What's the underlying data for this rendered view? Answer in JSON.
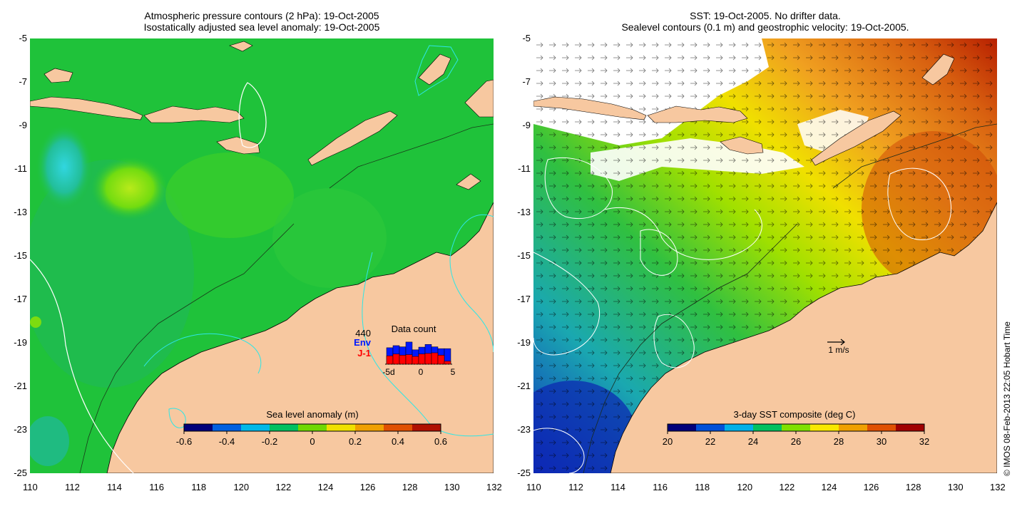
{
  "left_panel": {
    "title_line1": "Atmospheric pressure contours (2 hPa): 19-Oct-2005",
    "title_line2": "Isostatically adjusted sea level anomaly: 19-Oct-2005",
    "colorbar": {
      "label": "Sea level anomaly (m)",
      "ticks": [
        "-0.6",
        "-0.4",
        "-0.2",
        "0",
        "0.2",
        "0.4",
        "0.6"
      ],
      "values": [
        -0.6,
        -0.4,
        -0.2,
        0,
        0.2,
        0.4,
        0.6
      ],
      "colors": [
        "#00007a",
        "#0060e0",
        "#00b8e8",
        "#00c060",
        "#70d800",
        "#f0e000",
        "#f0a000",
        "#e05000",
        "#b01000"
      ]
    },
    "inset": {
      "count": "440",
      "label_env": "Env",
      "label_j1": "J-1",
      "title": "Data count",
      "x_ticks": [
        "-5d",
        "0",
        "5"
      ],
      "env_color": "#0018ff",
      "j1_color": "#ff0000",
      "env_bars": [
        0.55,
        0.62,
        0.58,
        0.74,
        0.48,
        0.57,
        0.66,
        0.58,
        0.52,
        0.52
      ],
      "j1_bars": [
        0.28,
        0.34,
        0.3,
        0.32,
        0.26,
        0.34,
        0.36,
        0.38,
        0.3,
        0.1
      ]
    }
  },
  "right_panel": {
    "title_line1": "SST: 19-Oct-2005. No drifter data.",
    "title_line2": "Sealevel contours (0.1 m) and geostrophic velocity: 19-Oct-2005.",
    "colorbar": {
      "label": "3-day SST composite (deg C)",
      "ticks": [
        "20",
        "22",
        "24",
        "26",
        "28",
        "30",
        "32"
      ],
      "values": [
        20,
        22,
        24,
        26,
        28,
        30,
        32
      ],
      "colors": [
        "#00007a",
        "#0050d8",
        "#00b0e8",
        "#00c060",
        "#80e000",
        "#f8e800",
        "#f0a000",
        "#e05000",
        "#a00000"
      ]
    },
    "scale_label": "1 m/s"
  },
  "axes": {
    "x_ticks": [
      "110",
      "112",
      "114",
      "116",
      "118",
      "120",
      "122",
      "124",
      "126",
      "128",
      "130",
      "132"
    ],
    "y_ticks": [
      "-5",
      "-7",
      "-9",
      "-11",
      "-13",
      "-15",
      "-17",
      "-19",
      "-21",
      "-23",
      "-25"
    ],
    "lon_range": [
      110,
      132
    ],
    "lat_range": [
      -25,
      -5
    ]
  },
  "credit": "© IMOS 08-Feb-2013 22:05 Hobart Time",
  "colors": {
    "land": "#f7c8a0",
    "sea_green": "#1fc23a",
    "contour_white": "#ffffff",
    "contour_cyan": "#2ee6e6"
  }
}
